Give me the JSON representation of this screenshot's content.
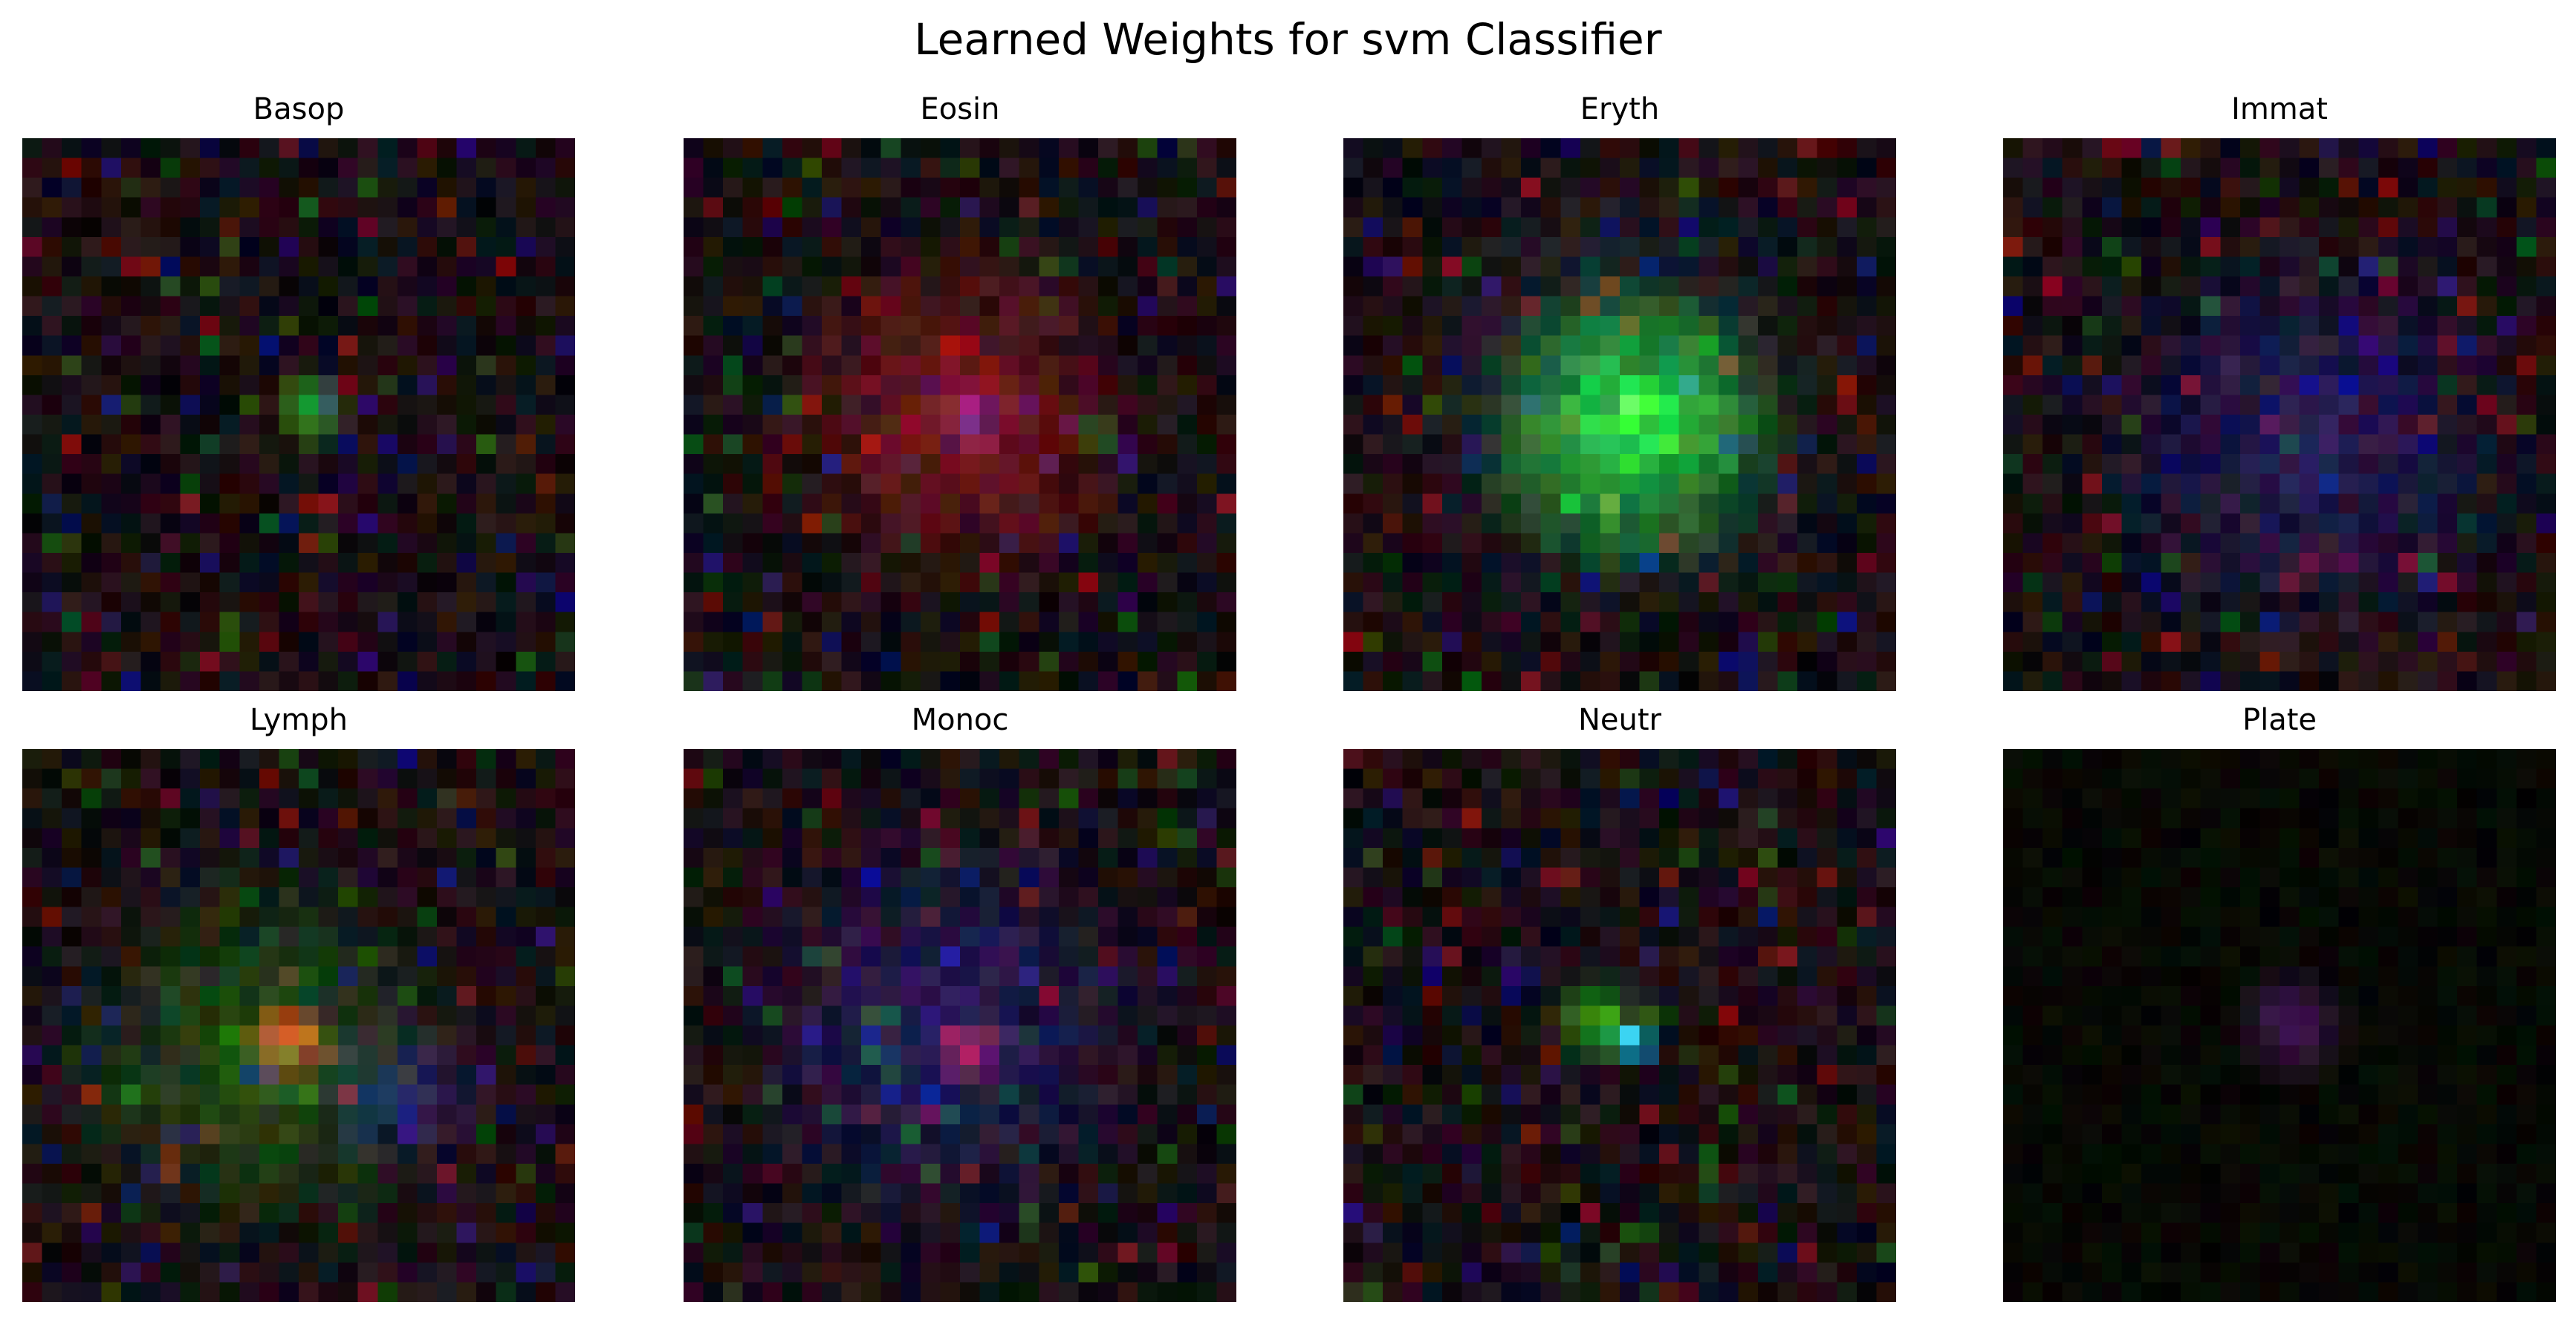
{
  "figure_title": "Learned Weights for svm Classifier",
  "chart_data": {
    "type": "heatmap",
    "title": "Learned Weights for svm Classifier",
    "grid": false,
    "axes_visible": false,
    "layout": "2 rows x 4 columns",
    "image_resolution": [
      28,
      28
    ],
    "color_mode": "RGB",
    "panels": [
      {
        "label": "Basop",
        "pattern": "noisy dark background with dark red and purple speckles; small bright green blob left of center",
        "accents": [
          {
            "channel": "green",
            "center": [
              0.52,
              0.49
            ],
            "radius": 0.08,
            "intensity": 0.8
          }
        ]
      },
      {
        "label": "Eosin",
        "pattern": "large dark red disc filling the center; small blue patch at center; blue-green noise around the border",
        "accents": [
          {
            "channel": "red",
            "center": [
              0.5,
              0.5
            ],
            "radius": 0.36,
            "intensity": 0.5
          },
          {
            "channel": "blue",
            "center": [
              0.52,
              0.51
            ],
            "radius": 0.08,
            "intensity": 0.5
          }
        ]
      },
      {
        "label": "Eryth",
        "pattern": "large bright green disc centered; teal ring around it; dark red and purple noise at the edges",
        "accents": [
          {
            "channel": "green",
            "center": [
              0.52,
              0.52
            ],
            "radius": 0.3,
            "intensity": 0.9
          },
          {
            "channel": "teal",
            "center": [
              0.5,
              0.48
            ],
            "radius": 0.42,
            "intensity": 0.3
          }
        ]
      },
      {
        "label": "Immat",
        "pattern": "faint noise dominated by dark blue and purple pixels; subtle green near the left edge",
        "accents": [
          {
            "channel": "blue",
            "center": [
              0.55,
              0.55
            ],
            "radius": 0.42,
            "intensity": 0.35
          }
        ]
      },
      {
        "label": "Lymph",
        "pattern": "bright red square just left of center; blue region to its lower right; green ring around the middle",
        "accents": [
          {
            "channel": "red",
            "center": [
              0.48,
              0.53
            ],
            "radius": 0.09,
            "intensity": 1.0
          },
          {
            "channel": "blue",
            "center": [
              0.68,
              0.62
            ],
            "radius": 0.18,
            "intensity": 0.35
          },
          {
            "channel": "green",
            "center": [
              0.42,
              0.55
            ],
            "radius": 0.38,
            "intensity": 0.35
          }
        ]
      },
      {
        "label": "Monoc",
        "pattern": "dark blue noise throughout; dark red patch at center; red-brown noise along the border",
        "accents": [
          {
            "channel": "blue",
            "center": [
              0.48,
              0.5
            ],
            "radius": 0.42,
            "intensity": 0.35
          },
          {
            "channel": "red",
            "center": [
              0.52,
              0.55
            ],
            "radius": 0.08,
            "intensity": 0.55
          }
        ]
      },
      {
        "label": "Neutr",
        "pattern": "green blob with bright cyan lower-right part slightly left of center; dark red and purple noise elsewhere",
        "accents": [
          {
            "channel": "green",
            "center": [
              0.46,
              0.49
            ],
            "radius": 0.09,
            "intensity": 0.75
          },
          {
            "channel": "cyan",
            "center": [
              0.52,
              0.53
            ],
            "radius": 0.055,
            "intensity": 0.9
          }
        ]
      },
      {
        "label": "Plate",
        "pattern": "very faint low-contrast olive/green noise; dim purple patch at center",
        "accents": [
          {
            "channel": "purple",
            "center": [
              0.52,
              0.5
            ],
            "radius": 0.12,
            "intensity": 0.45
          }
        ]
      }
    ]
  }
}
